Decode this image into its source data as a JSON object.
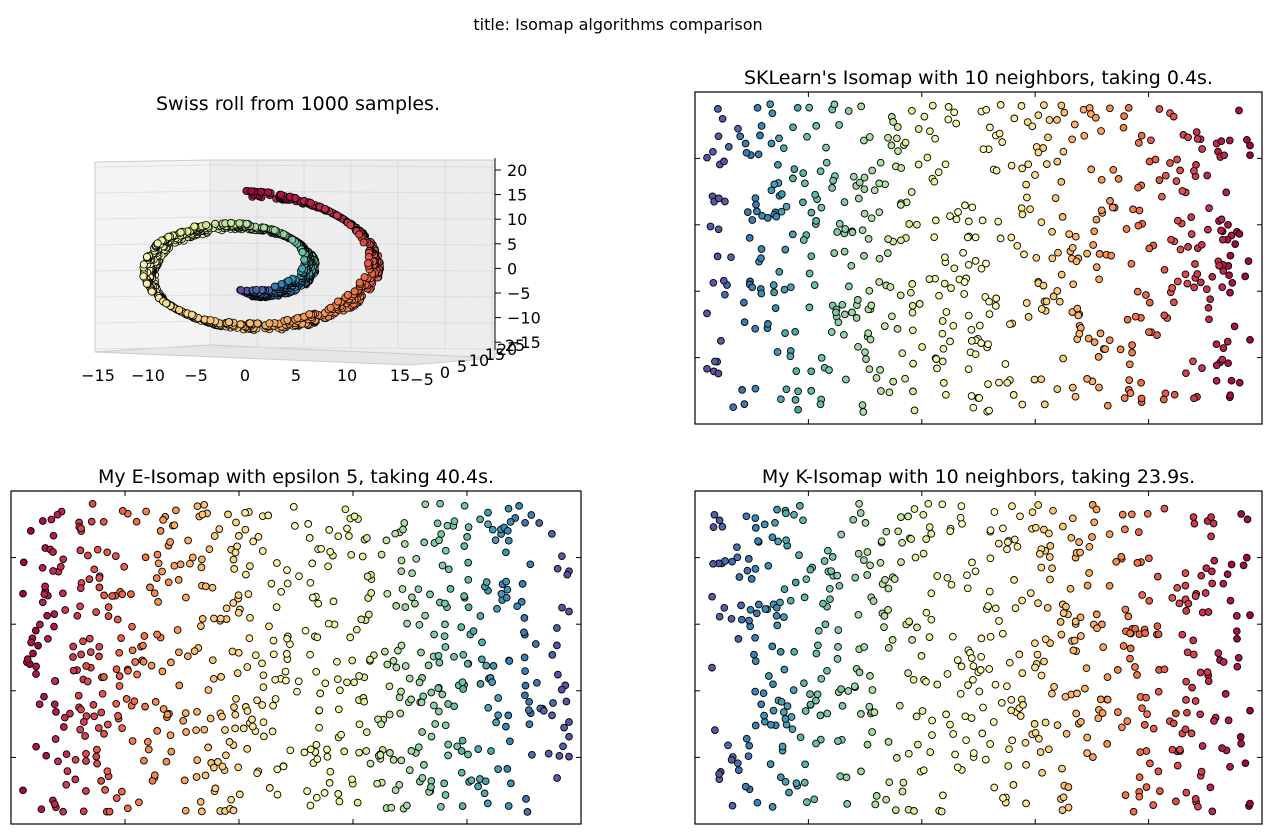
{
  "figure": {
    "title": "title: Isomap algorithms comparison"
  },
  "panels": {
    "swiss_roll": {
      "title": "Swiss roll from 1000 samples."
    },
    "sklearn": {
      "title": "SKLearn's Isomap with 10 neighbors, taking 0.4s."
    },
    "e_isomap": {
      "title": "My E-Isomap with epsilon 5, taking 40.4s."
    },
    "k_isomap": {
      "title": "My K-Isomap with 10 neighbors, taking 23.9s."
    }
  },
  "chart_data": [
    {
      "type": "scatter",
      "projection": "3d",
      "title": "Swiss roll from 1000 samples.",
      "n_samples": 1000,
      "colormap": "Spectral",
      "xlim": [
        -15,
        15
      ],
      "ylim": [
        -5,
        25
      ],
      "zlim": [
        -15,
        20
      ],
      "x_ticks": [
        "−15",
        "−10",
        "−5",
        "0",
        "5",
        "10",
        "15"
      ],
      "y_ticks": [
        "−5",
        "0",
        "5",
        "10",
        "15",
        "20",
        "25"
      ],
      "z_ticks": [
        "20",
        "15",
        "10",
        "5",
        "0",
        "−5",
        "−10",
        "−15"
      ],
      "grid": true
    },
    {
      "type": "scatter",
      "title": "SKLearn's Isomap with 10 neighbors, taking 0.4s.",
      "n_samples": 1000,
      "colormap": "Spectral",
      "color_direction": "left-to-right: blue → red",
      "x_tick_labels": false,
      "y_tick_labels": false
    },
    {
      "type": "scatter",
      "title": "My E-Isomap with epsilon 5, taking 40.4s.",
      "n_samples": 1000,
      "colormap": "Spectral",
      "color_direction": "left-to-right: red → blue",
      "x_tick_labels": false,
      "y_tick_labels": false
    },
    {
      "type": "scatter",
      "title": "My K-Isomap with 10 neighbors, taking 23.9s.",
      "n_samples": 1000,
      "colormap": "Spectral",
      "color_direction": "left-to-right: blue → red",
      "x_tick_labels": false,
      "y_tick_labels": false
    }
  ],
  "colors": {
    "spectral": [
      "#9e0142",
      "#d53e4f",
      "#f46d43",
      "#fdae61",
      "#fee08b",
      "#ffffbf",
      "#e6f598",
      "#abdda4",
      "#66c2a5",
      "#3288bd",
      "#5e4fa2"
    ],
    "axes": "#000000",
    "pane_3d": "#f2f2f2"
  }
}
